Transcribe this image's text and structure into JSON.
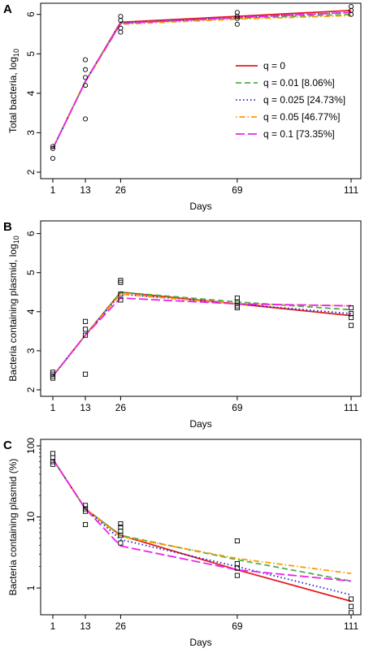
{
  "legend": [
    {
      "name": "q = 0",
      "color": "#e41a1c",
      "dash": "solid"
    },
    {
      "name": "q = 0.01 [8.06%]",
      "color": "#4daf4a",
      "dash": "dashed"
    },
    {
      "name": "q = 0.025 [24.73%]",
      "color": "#1f1fd0",
      "dash": "dotted"
    },
    {
      "name": "q = 0.05 [46.77%]",
      "color": "#ff9900",
      "dash": "dotdash"
    },
    {
      "name": "q = 0.1 [73.35%]",
      "color": "#ee22ee",
      "dash": "longdash"
    }
  ],
  "chart_data": [
    {
      "type": "line",
      "panel_label": "A",
      "xlabel": "Days",
      "ylabel_main": "Total bacteria, log",
      "ylabel_sub": "10",
      "x_ticks": [
        1,
        13,
        26,
        69,
        111
      ],
      "y_ticks": [
        2,
        3,
        4,
        5,
        6
      ],
      "xlim": [
        1,
        111
      ],
      "ylim": [
        2,
        6.2
      ],
      "yscale": "linear",
      "legend_position": "right-center",
      "marker": "circle",
      "observed": {
        "x": [
          1,
          1,
          1,
          13,
          13,
          13,
          13,
          13,
          26,
          26,
          26,
          26,
          69,
          69,
          69,
          69,
          111,
          111,
          111
        ],
        "y": [
          2.35,
          2.6,
          2.65,
          3.35,
          4.2,
          4.4,
          4.6,
          4.85,
          5.55,
          5.65,
          5.85,
          5.95,
          5.75,
          5.9,
          5.95,
          6.05,
          6.0,
          6.1,
          6.2
        ]
      },
      "x": [
        1,
        13,
        26,
        69,
        111
      ],
      "series": [
        {
          "name": "q = 0",
          "values": [
            2.6,
            4.3,
            5.8,
            5.95,
            6.1
          ]
        },
        {
          "name": "q = 0.01 [8.06%]",
          "values": [
            2.6,
            4.3,
            5.78,
            5.9,
            6.0
          ]
        },
        {
          "name": "q = 0.025 [24.73%]",
          "values": [
            2.6,
            4.3,
            5.78,
            5.92,
            6.05
          ]
        },
        {
          "name": "q = 0.05 [46.77%]",
          "values": [
            2.6,
            4.3,
            5.75,
            5.88,
            5.97
          ]
        },
        {
          "name": "q = 0.1 [73.35%]",
          "values": [
            2.6,
            4.3,
            5.77,
            5.92,
            6.05
          ]
        }
      ]
    },
    {
      "type": "line",
      "panel_label": "B",
      "xlabel": "Days",
      "ylabel_main": "Bacteria containing plasmid, log",
      "ylabel_sub": "10",
      "x_ticks": [
        1,
        13,
        26,
        69,
        111
      ],
      "y_ticks": [
        2,
        3,
        4,
        5,
        6
      ],
      "xlim": [
        1,
        111
      ],
      "ylim": [
        2,
        6.2
      ],
      "yscale": "linear",
      "marker": "square",
      "observed": {
        "x": [
          1,
          1,
          1,
          1,
          13,
          13,
          13,
          13,
          26,
          26,
          26,
          26,
          69,
          69,
          69,
          69,
          111,
          111,
          111,
          111
        ],
        "y": [
          2.3,
          2.35,
          2.4,
          2.45,
          2.4,
          3.4,
          3.55,
          3.75,
          4.3,
          4.45,
          4.75,
          4.8,
          4.1,
          4.15,
          4.25,
          4.35,
          3.65,
          3.85,
          3.95,
          4.1
        ]
      },
      "x": [
        1,
        13,
        26,
        69,
        111
      ],
      "series": [
        {
          "name": "q = 0",
          "values": [
            2.35,
            3.4,
            4.5,
            4.2,
            3.9
          ]
        },
        {
          "name": "q = 0.01 [8.06%]",
          "values": [
            2.35,
            3.4,
            4.5,
            4.25,
            4.05
          ]
        },
        {
          "name": "q = 0.025 [24.73%]",
          "values": [
            2.35,
            3.4,
            4.45,
            4.2,
            3.95
          ]
        },
        {
          "name": "q = 0.05 [46.77%]",
          "values": [
            2.35,
            3.4,
            4.45,
            4.2,
            4.15
          ]
        },
        {
          "name": "q = 0.1 [73.35%]",
          "values": [
            2.35,
            3.4,
            4.35,
            4.2,
            4.15
          ]
        }
      ]
    },
    {
      "type": "line",
      "panel_label": "C",
      "xlabel": "Days",
      "ylabel_main": "Bacteria containing plasmid (%)",
      "ylabel_sub": "",
      "x_ticks": [
        1,
        13,
        26,
        69,
        111
      ],
      "y_ticks": [
        1,
        10,
        100
      ],
      "xlim": [
        1,
        111
      ],
      "ylim": [
        0.42,
        100
      ],
      "yscale": "log",
      "marker": "square",
      "observed": {
        "x": [
          1,
          1,
          1,
          1,
          13,
          13,
          13,
          13,
          26,
          26,
          26,
          26,
          26,
          69,
          69,
          69,
          69,
          111,
          111,
          111
        ],
        "y": [
          55,
          60,
          68,
          78,
          7.8,
          12,
          13,
          14.5,
          4.3,
          5.5,
          6.3,
          7.2,
          8.0,
          1.5,
          1.9,
          2.2,
          4.6,
          0.45,
          0.55,
          0.7
        ]
      },
      "x": [
        1,
        13,
        26,
        69,
        111
      ],
      "series": [
        {
          "name": "q = 0",
          "values": [
            65,
            13,
            5.5,
            1.8,
            0.65
          ]
        },
        {
          "name": "q = 0.01 [8.06%]",
          "values": [
            65,
            13,
            5.5,
            2.5,
            1.25
          ]
        },
        {
          "name": "q = 0.025 [24.73%]",
          "values": [
            65,
            13,
            4.8,
            2.0,
            0.8
          ]
        },
        {
          "name": "q = 0.05 [46.77%]",
          "values": [
            65,
            13,
            5.3,
            2.6,
            1.6
          ]
        },
        {
          "name": "q = 0.1 [73.35%]",
          "values": [
            65,
            13,
            3.9,
            1.8,
            1.25
          ]
        }
      ]
    }
  ]
}
